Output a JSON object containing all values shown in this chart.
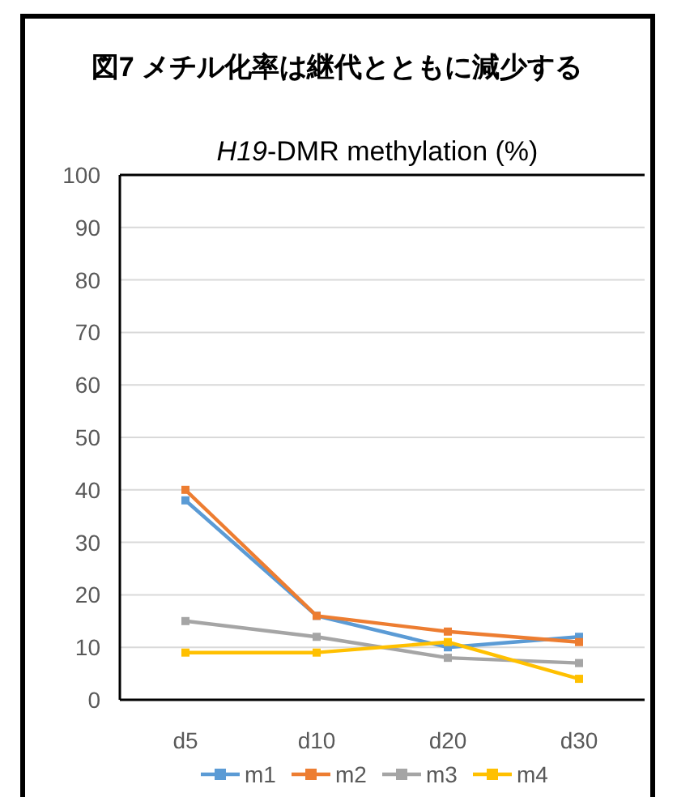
{
  "chart_data": {
    "type": "line",
    "title": "図7 メチル化率は継代とともに減少する",
    "subtitle": "*H19*-DMR methylation (%)",
    "categories": [
      "d5",
      "d10",
      "d20",
      "d30"
    ],
    "series": [
      {
        "name": "m1",
        "color": "#5b9bd5",
        "values": [
          38,
          16,
          10,
          12
        ]
      },
      {
        "name": "m2",
        "color": "#ed7d31",
        "values": [
          40,
          16,
          13,
          11
        ]
      },
      {
        "name": "m3",
        "color": "#a5a5a5",
        "values": [
          15,
          12,
          8,
          7
        ]
      },
      {
        "name": "m4",
        "color": "#ffc000",
        "values": [
          9,
          9,
          11,
          4
        ]
      }
    ],
    "ylim": [
      0,
      100
    ],
    "yticks": [
      0,
      10,
      20,
      30,
      40,
      50,
      60,
      70,
      80,
      90,
      100
    ],
    "grid": "y",
    "legend": "bottom",
    "marker": "square",
    "line_style": "solid"
  }
}
